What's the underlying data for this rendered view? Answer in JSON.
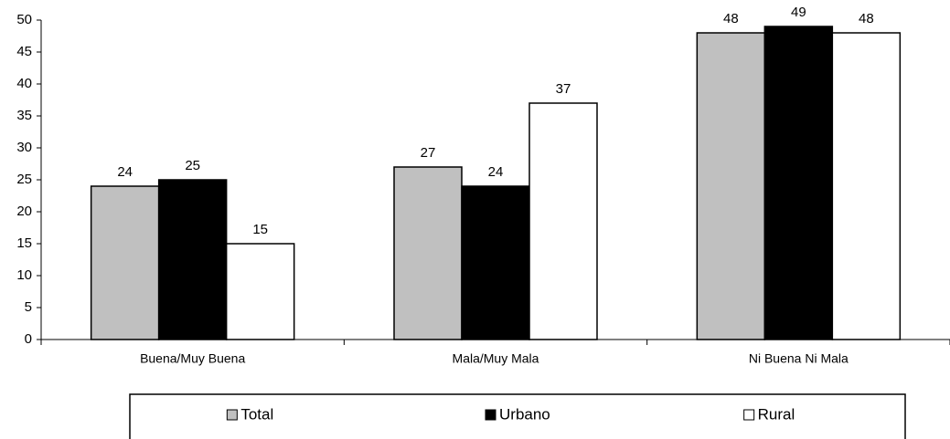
{
  "chart_data": {
    "type": "bar",
    "categories": [
      "Buena/Muy Buena",
      "Mala/Muy Mala",
      "Ni Buena Ni Mala"
    ],
    "series": [
      {
        "name": "Total",
        "color": "#c0c0c0",
        "values": [
          24,
          27,
          48
        ]
      },
      {
        "name": "Urbano",
        "color": "#000000",
        "values": [
          25,
          24,
          49
        ]
      },
      {
        "name": "Rural",
        "color": "#ffffff",
        "values": [
          15,
          37,
          48
        ]
      }
    ],
    "ylim": [
      0,
      50
    ],
    "yticks": [
      0,
      5,
      10,
      15,
      20,
      25,
      30,
      35,
      40,
      45,
      50
    ],
    "grid": false,
    "legend": "bottom"
  }
}
